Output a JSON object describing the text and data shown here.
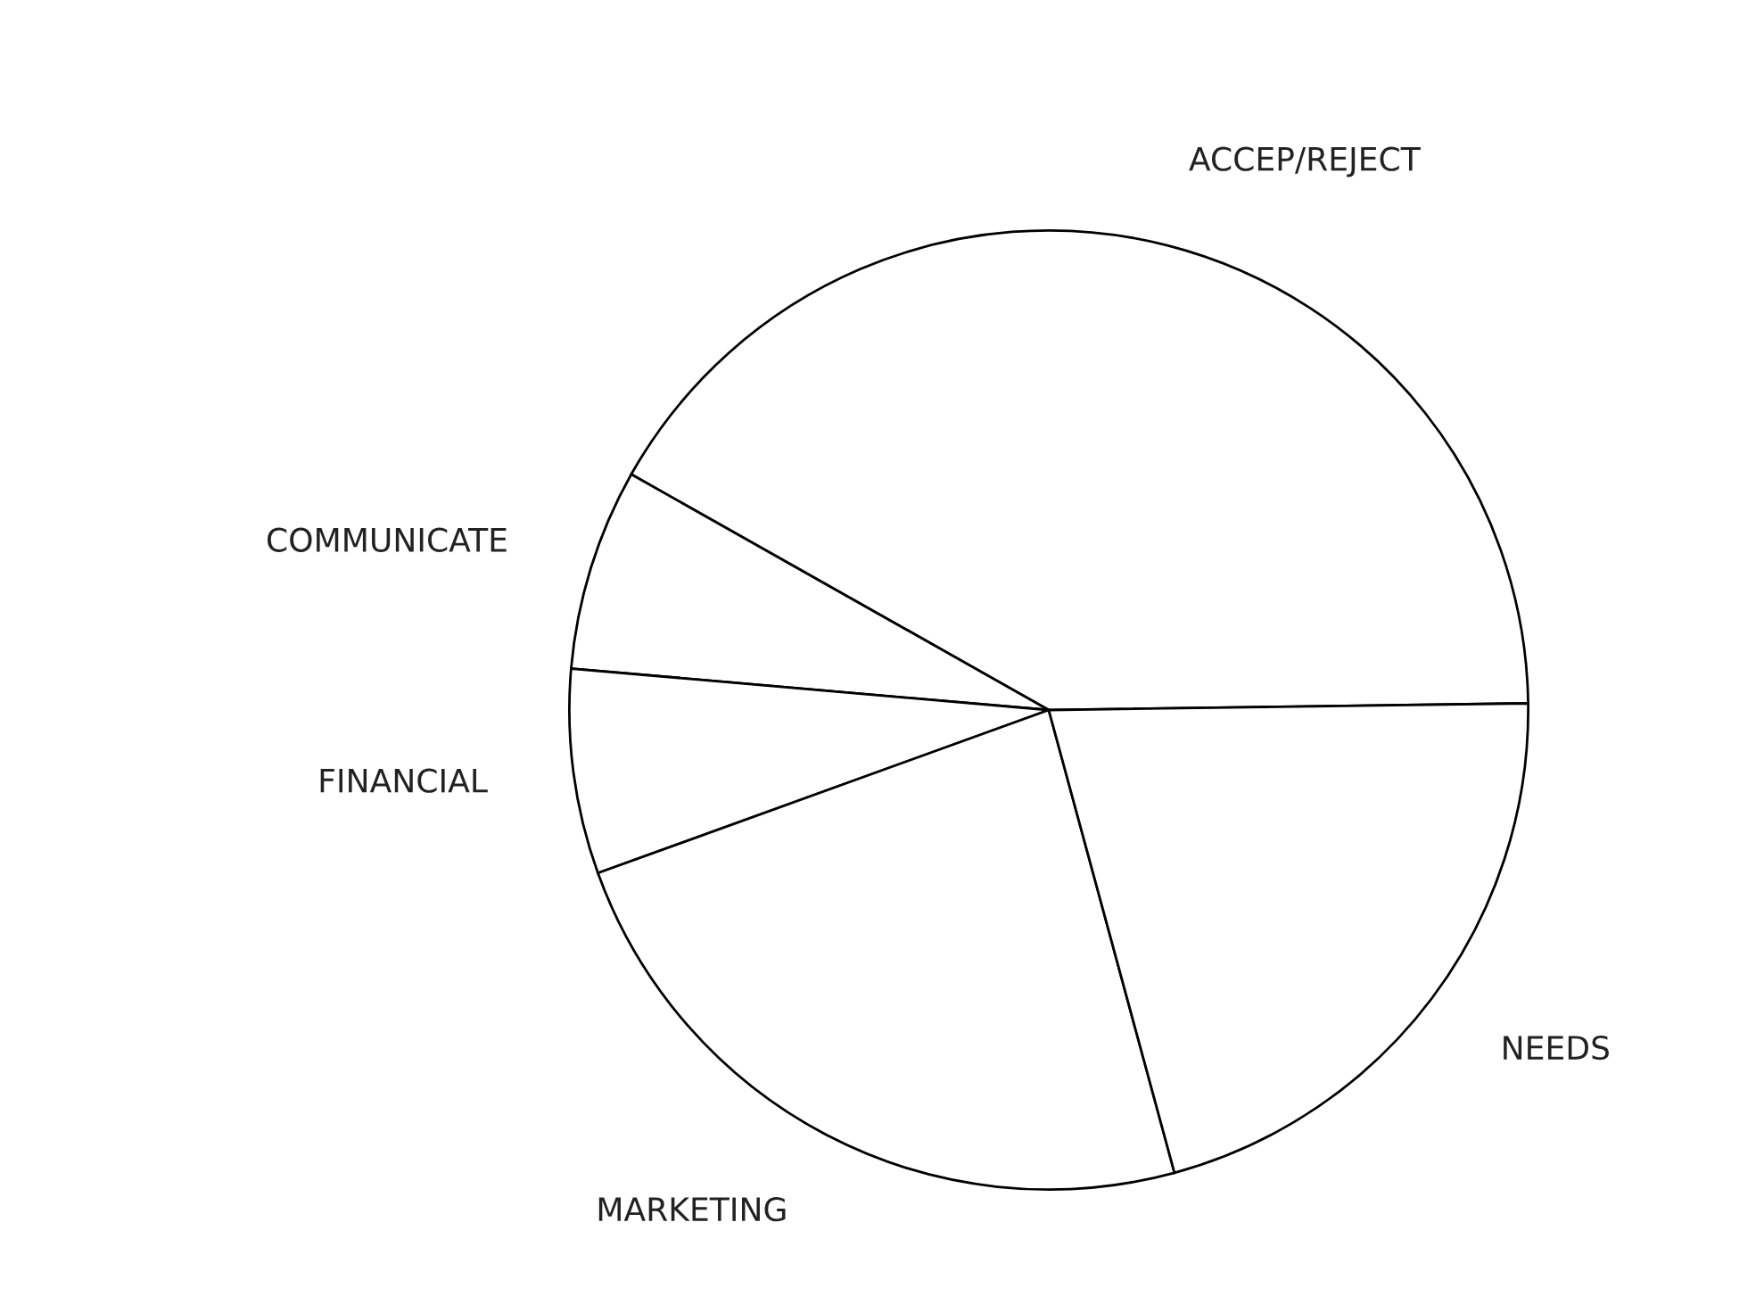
{
  "chart_data": {
    "type": "pie",
    "categories": [
      "ACCEP/REJECT",
      "COMMUNICATE",
      "FINANCIAL",
      "MARKETING",
      "NEEDS"
    ],
    "values": [
      41.6,
      6.8,
      6.9,
      23.7,
      21.0
    ],
    "colors": [
      "#ffffff",
      "#ffffff",
      "#ffffff",
      "#ffffff",
      "#ffffff"
    ]
  }
}
